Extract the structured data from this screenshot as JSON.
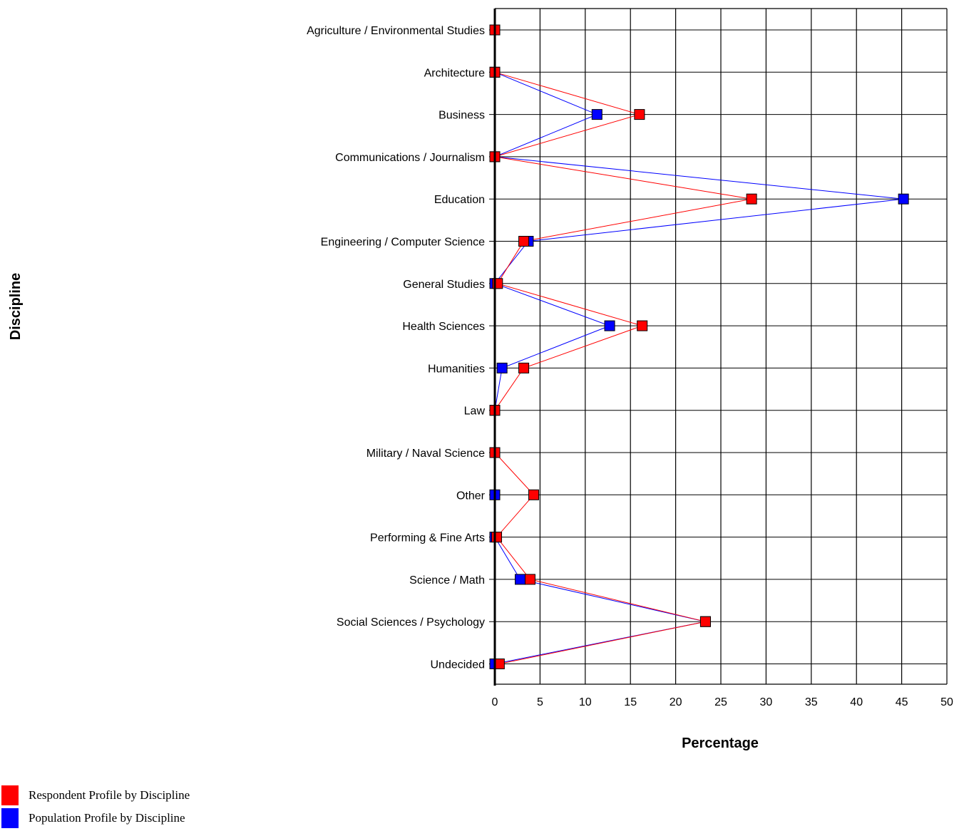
{
  "chart_data": {
    "type": "line",
    "orientation": "horizontal",
    "categories": [
      "Agriculture / Environmental Studies",
      "Architecture",
      "Business",
      "Communications / Journalism",
      "Education",
      "Engineering / Computer Science",
      "General Studies",
      "Health Sciences",
      "Humanities",
      "Law",
      "Military / Naval Science",
      "Other",
      "Performing & Fine Arts",
      "Science / Math",
      "Social Sciences / Psychology",
      "Undecided"
    ],
    "series": [
      {
        "name": "Population Profile by Discipline",
        "color": "#0000ff",
        "values": [
          0.0,
          0.0,
          11.3,
          0.0,
          45.2,
          3.7,
          0.0,
          12.7,
          0.8,
          0.0,
          0.0,
          0.0,
          0.0,
          2.8,
          23.3,
          0.0
        ]
      },
      {
        "name": "Respondent Profile by Discipline",
        "color": "#ff0000",
        "values": [
          0.0,
          0.0,
          16.0,
          0.0,
          28.4,
          3.2,
          0.3,
          16.3,
          3.2,
          0.0,
          0.0,
          4.3,
          0.2,
          3.9,
          23.3,
          0.5
        ]
      }
    ],
    "xlabel": "Percentage",
    "ylabel": "Discipline",
    "xlim": [
      0,
      50
    ],
    "xticks": [
      "0",
      "5",
      "10",
      "15",
      "20",
      "25",
      "30",
      "35",
      "40",
      "45",
      "50"
    ],
    "grid": true,
    "legend_position": "bottom-left"
  },
  "legend": [
    {
      "label": "Respondent Profile by Discipline",
      "color": "#ff0000"
    },
    {
      "label": "Population Profile by Discipline",
      "color": "#0000ff"
    }
  ]
}
